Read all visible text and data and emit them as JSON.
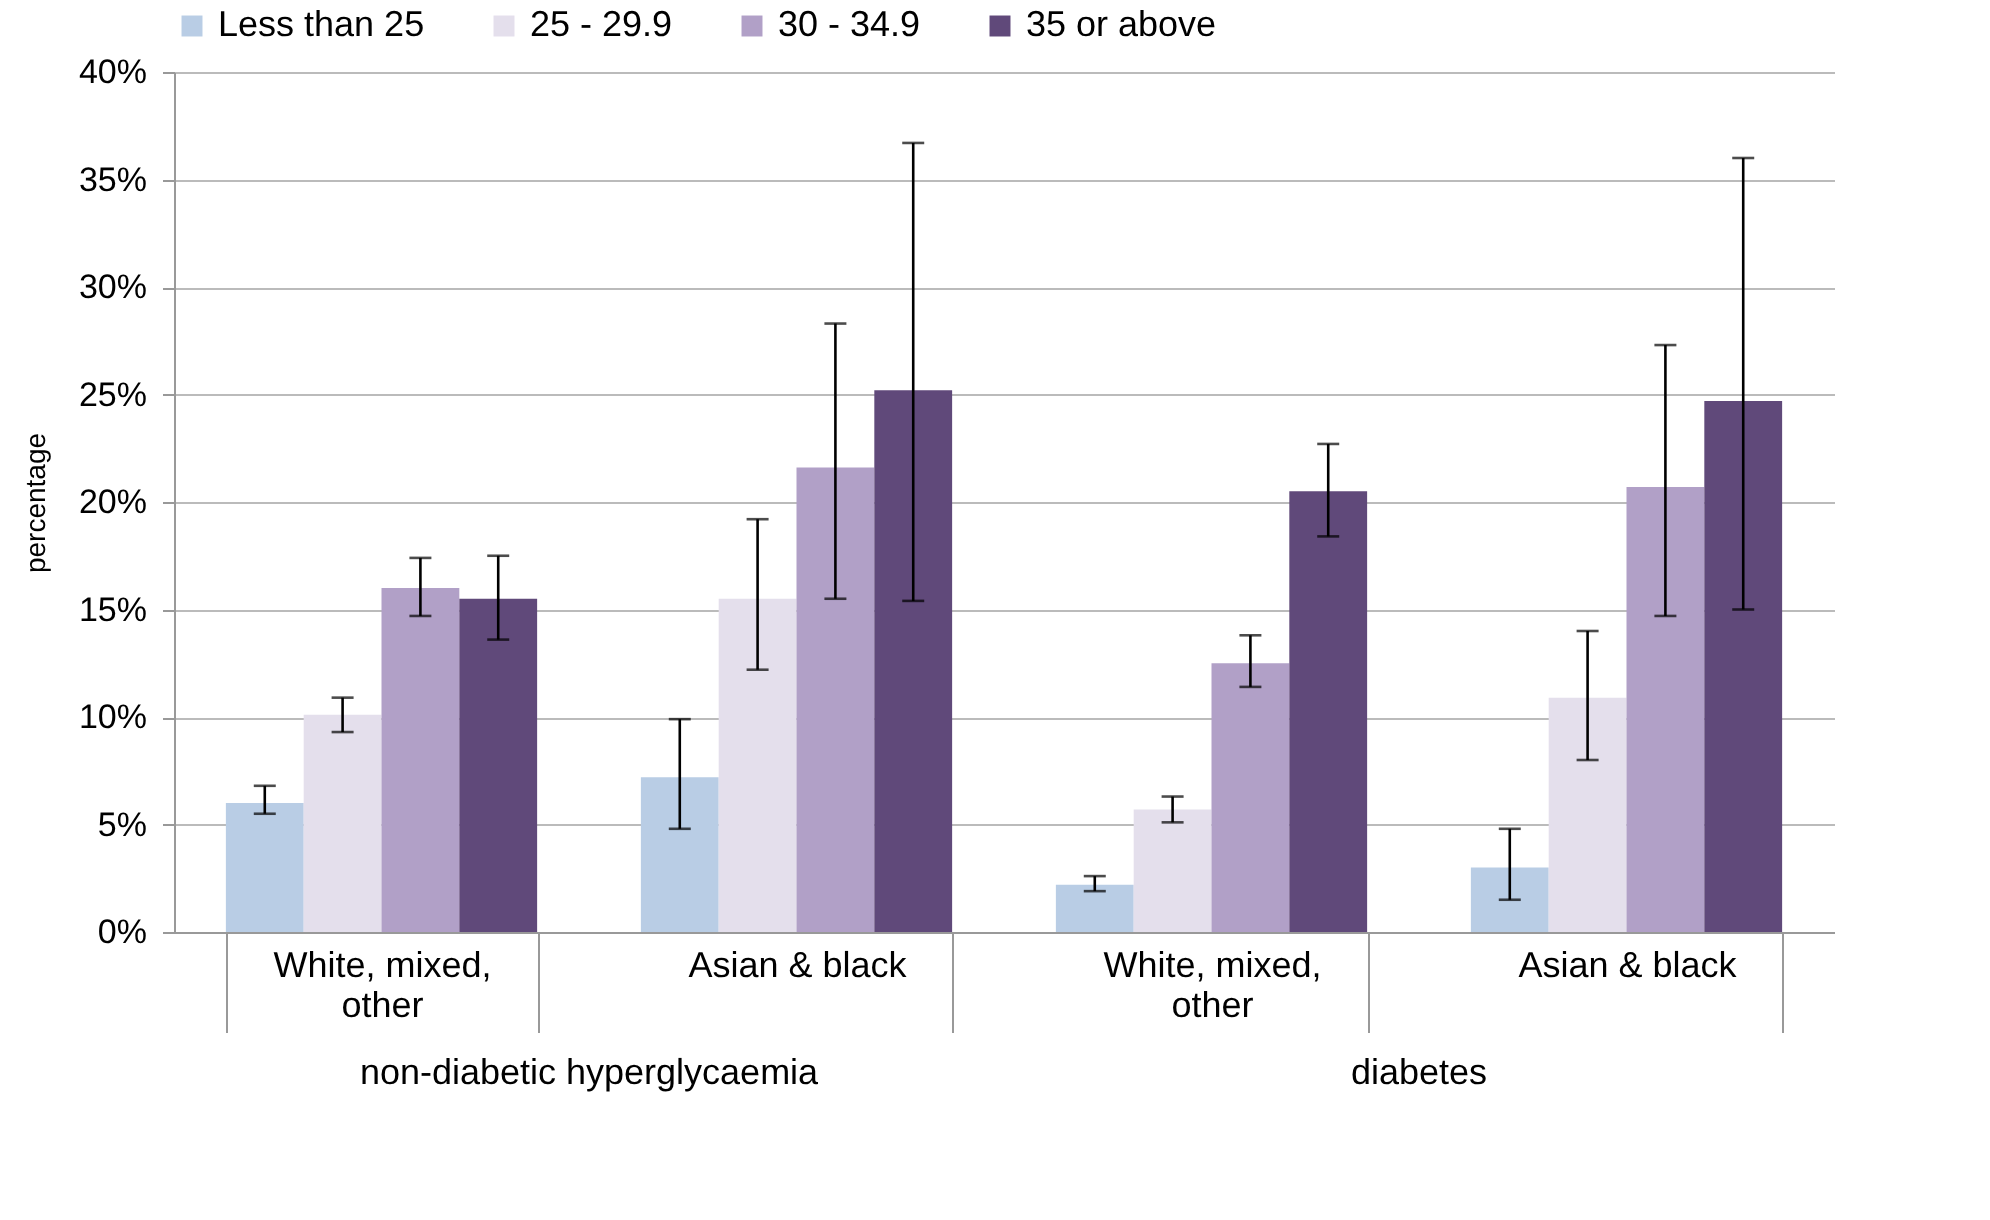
{
  "chart_data": {
    "type": "bar",
    "ylabel": "percentage",
    "categories": [
      "White, mixed, other",
      "Asian & black",
      "White, mixed, other",
      "Asian & black"
    ],
    "series": [
      {
        "name": "Less than 25",
        "color": "#b9cde5",
        "values": [
          6.0,
          7.2,
          2.2,
          3.0
        ],
        "errors": [
          [
            5.5,
            6.8
          ],
          [
            4.8,
            9.9
          ],
          [
            1.9,
            2.6
          ],
          [
            1.5,
            4.8
          ]
        ]
      },
      {
        "name": "25 - 29.9",
        "color": "#e4dfec",
        "values": [
          10.1,
          15.5,
          5.7,
          10.9
        ],
        "errors": [
          [
            9.3,
            10.9
          ],
          [
            12.2,
            19.2
          ],
          [
            5.1,
            6.3
          ],
          [
            8.0,
            14.0
          ]
        ]
      },
      {
        "name": "30 - 34.9",
        "color": "#b1a0c7",
        "values": [
          16.0,
          21.6,
          12.5,
          20.7
        ],
        "errors": [
          [
            14.7,
            17.4
          ],
          [
            15.5,
            28.3
          ],
          [
            11.4,
            13.8
          ],
          [
            14.7,
            27.3
          ]
        ]
      },
      {
        "name": "35 or above",
        "color": "#60497a",
        "values": [
          15.5,
          25.2,
          20.5,
          24.7
        ],
        "errors": [
          [
            13.6,
            17.5
          ],
          [
            15.4,
            36.7
          ],
          [
            18.4,
            22.7
          ],
          [
            15.0,
            36.0
          ]
        ]
      }
    ],
    "ylim": [
      0,
      40
    ],
    "yticks": [
      {
        "value": 0,
        "label": "0%"
      },
      {
        "value": 5,
        "label": "5%"
      },
      {
        "value": 10,
        "label": "10%"
      },
      {
        "value": 15,
        "label": "15%"
      },
      {
        "value": 20,
        "label": "20%"
      },
      {
        "value": 25,
        "label": "25%"
      },
      {
        "value": 30,
        "label": "30%"
      },
      {
        "value": 35,
        "label": "35%"
      },
      {
        "value": 40,
        "label": "40%"
      }
    ],
    "annotations": [
      "non-diabetic hyperglycaemia",
      "diabetes"
    ],
    "grid": "y",
    "legend": "top"
  }
}
